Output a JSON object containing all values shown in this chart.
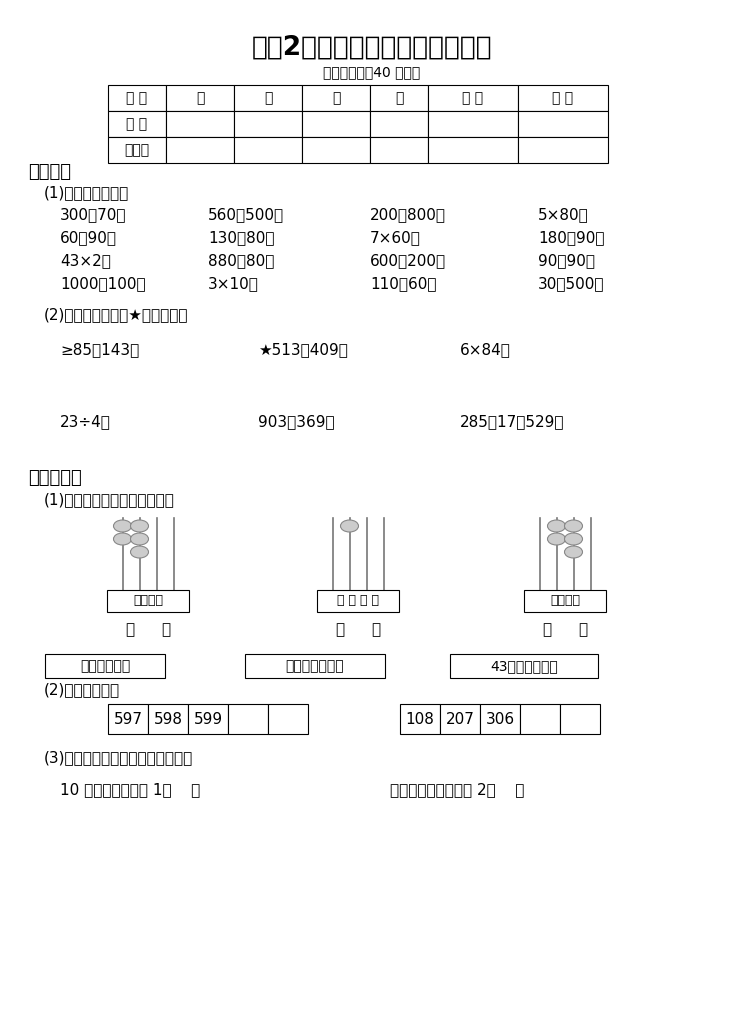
{
  "title": "小学2年级数学（下册）期末试卷",
  "subtitle": "（考试时间：40 分钟）",
  "bg_color": "#ffffff",
  "text_color": "#000000",
  "table_headers": [
    "题 号",
    "一",
    "二",
    "三",
    "四",
    "总 分",
    "等 第"
  ],
  "table_row_labels": [
    "得 分",
    "阅卷人"
  ],
  "section1_title": "一、计算",
  "s1_sub1": "(1)直接写出得数。",
  "calc_rows": [
    [
      "300＋70＝",
      "560－500＝",
      "200＋800＝",
      "5×80＝"
    ],
    [
      "60＋90＝",
      "130－80＝",
      "7×60＝",
      "180－90＝"
    ],
    [
      "43×2＝",
      "880－80＝",
      "600－200＝",
      "90＋90＝"
    ],
    [
      "1000－100＝",
      "3×10＝",
      "110－60＝",
      "30＋500＝"
    ]
  ],
  "s1_sub2": "(2)用竖式计算，有★的要验算。",
  "vertical_calc1": [
    "≥85＋143＝",
    "★513－409＝",
    "6×84＝"
  ],
  "vertical_calc2": [
    "23÷4＝",
    "903－369＝",
    "285＋17＋529＝"
  ],
  "section2_title": "二、填一填",
  "s2_sub1": "(1)先在括号里填数，再连线。",
  "abacus_labels": [
    "千百十个",
    "千 百 十 个",
    "千百十个"
  ],
  "abacus_bead_configs": [
    {
      "0": 2,
      "1": 3
    },
    {
      "1": 1
    },
    {
      "1": 2,
      "2": 3
    }
  ],
  "answer_boxes1": [
    "最小的四位数",
    "十位上是４的数",
    "43个十组成的数"
  ],
  "s2_sub2": "(2)找规律填数。",
  "number_seq1": [
    "597",
    "598",
    "599",
    "",
    ""
  ],
  "number_seq2": [
    "108",
    "207",
    "306",
    "",
    ""
  ],
  "s2_sub3": "(3)在括号里填上合适的长度单位。",
  "measure_line1": "10 张纸的厚度约是 1（    ）",
  "measure_line2": "吃饭用的筷子大约长 2（    ）"
}
